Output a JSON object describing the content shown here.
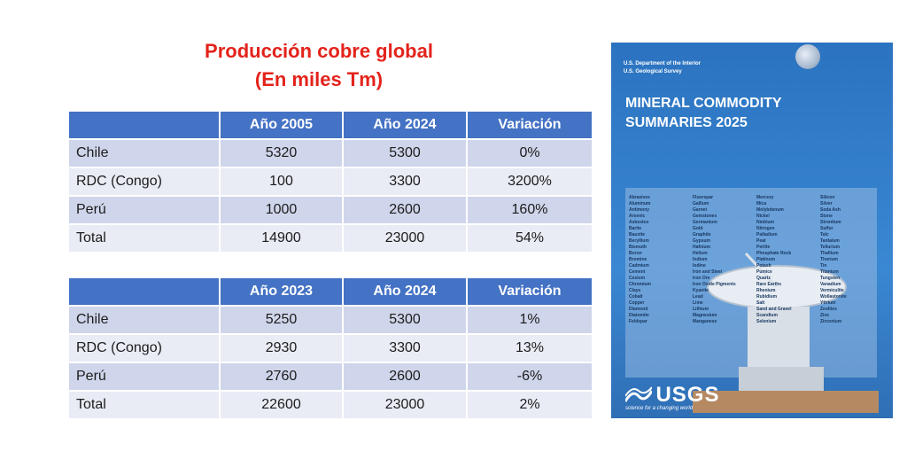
{
  "title": {
    "line1": "Producción cobre global",
    "line2": "(En miles Tm)"
  },
  "table1": {
    "headers": [
      "",
      "Año 2005",
      "Año 2024",
      "Variación"
    ],
    "rows": [
      {
        "country": "Chile",
        "v1": "5320",
        "v2": "5300",
        "var": "0%"
      },
      {
        "country": "RDC (Congo)",
        "v1": "100",
        "v2": "3300",
        "var": "3200%"
      },
      {
        "country": "Perú",
        "v1": "1000",
        "v2": "2600",
        "var": "160%"
      },
      {
        "country": "Total",
        "v1": "14900",
        "v2": "23000",
        "var": "54%"
      }
    ]
  },
  "table2": {
    "headers": [
      "",
      "Año 2023",
      "Año 2024",
      "Variación"
    ],
    "rows": [
      {
        "country": "Chile",
        "v1": "5250",
        "v2": "5300",
        "var": "1%"
      },
      {
        "country": "RDC (Congo)",
        "v1": "2930",
        "v2": "3300",
        "var": "13%"
      },
      {
        "country": "Perú",
        "v1": "2760",
        "v2": "2600",
        "var": "-6%"
      },
      {
        "country": "Total",
        "v1": "22600",
        "v2": "23000",
        "var": "2%"
      }
    ]
  },
  "cover": {
    "agency_line1": "U.S. Department of the Interior",
    "agency_line2": "U.S. Geological Survey",
    "title_line1": "MINERAL COMMODITY",
    "title_line2": "SUMMARIES 2025",
    "minerals_col1": [
      "Abrasives",
      "Aluminum",
      "Antimony",
      "Arsenic",
      "Asbestos",
      "Barite",
      "Bauxite",
      "Beryllium",
      "Bismuth",
      "Boron",
      "Bromine",
      "Cadmium",
      "Cement",
      "Cesium",
      "Chromium",
      "Clays",
      "Cobalt",
      "Copper",
      "Diamond",
      "Diatomite",
      "Feldspar"
    ],
    "minerals_col2": [
      "Fluorspar",
      "Gallium",
      "Garnet",
      "Gemstones",
      "Germanium",
      "Gold",
      "Graphite",
      "Gypsum",
      "Hafnium",
      "Helium",
      "Indium",
      "Iodine",
      "Iron and Steel",
      "Iron Ore",
      "Iron Oxide Pigments",
      "Kyanite",
      "Lead",
      "Lime",
      "Lithium",
      "Magnesium",
      "Manganese"
    ],
    "minerals_col3": [
      "Mercury",
      "Mica",
      "Molybdenum",
      "Nickel",
      "Niobium",
      "Nitrogen",
      "Palladium",
      "Peat",
      "Perlite",
      "Phosphate Rock",
      "Platinum",
      "Potash",
      "Pumice",
      "Quartz",
      "Rare Earths",
      "Rhenium",
      "Rubidium",
      "Salt",
      "Sand and Gravel",
      "Scandium",
      "Selenium"
    ],
    "minerals_col4": [
      "Silicon",
      "Silver",
      "Soda Ash",
      "Stone",
      "Strontium",
      "Sulfur",
      "Talc",
      "Tantalum",
      "Tellurium",
      "Thallium",
      "Thorium",
      "Tin",
      "Titanium",
      "Tungsten",
      "Vanadium",
      "Vermiculite",
      "Wollastonite",
      "Yttrium",
      "Zeolites",
      "Zinc",
      "Zirconium"
    ],
    "logo": "USGS",
    "tagline": "science for a changing world",
    "colors": {
      "cover_blue": "#3580cc",
      "header_blue": "#4472c4",
      "title_red": "#e3231b"
    },
    "icon": "radio-telescope-dish-icon"
  }
}
